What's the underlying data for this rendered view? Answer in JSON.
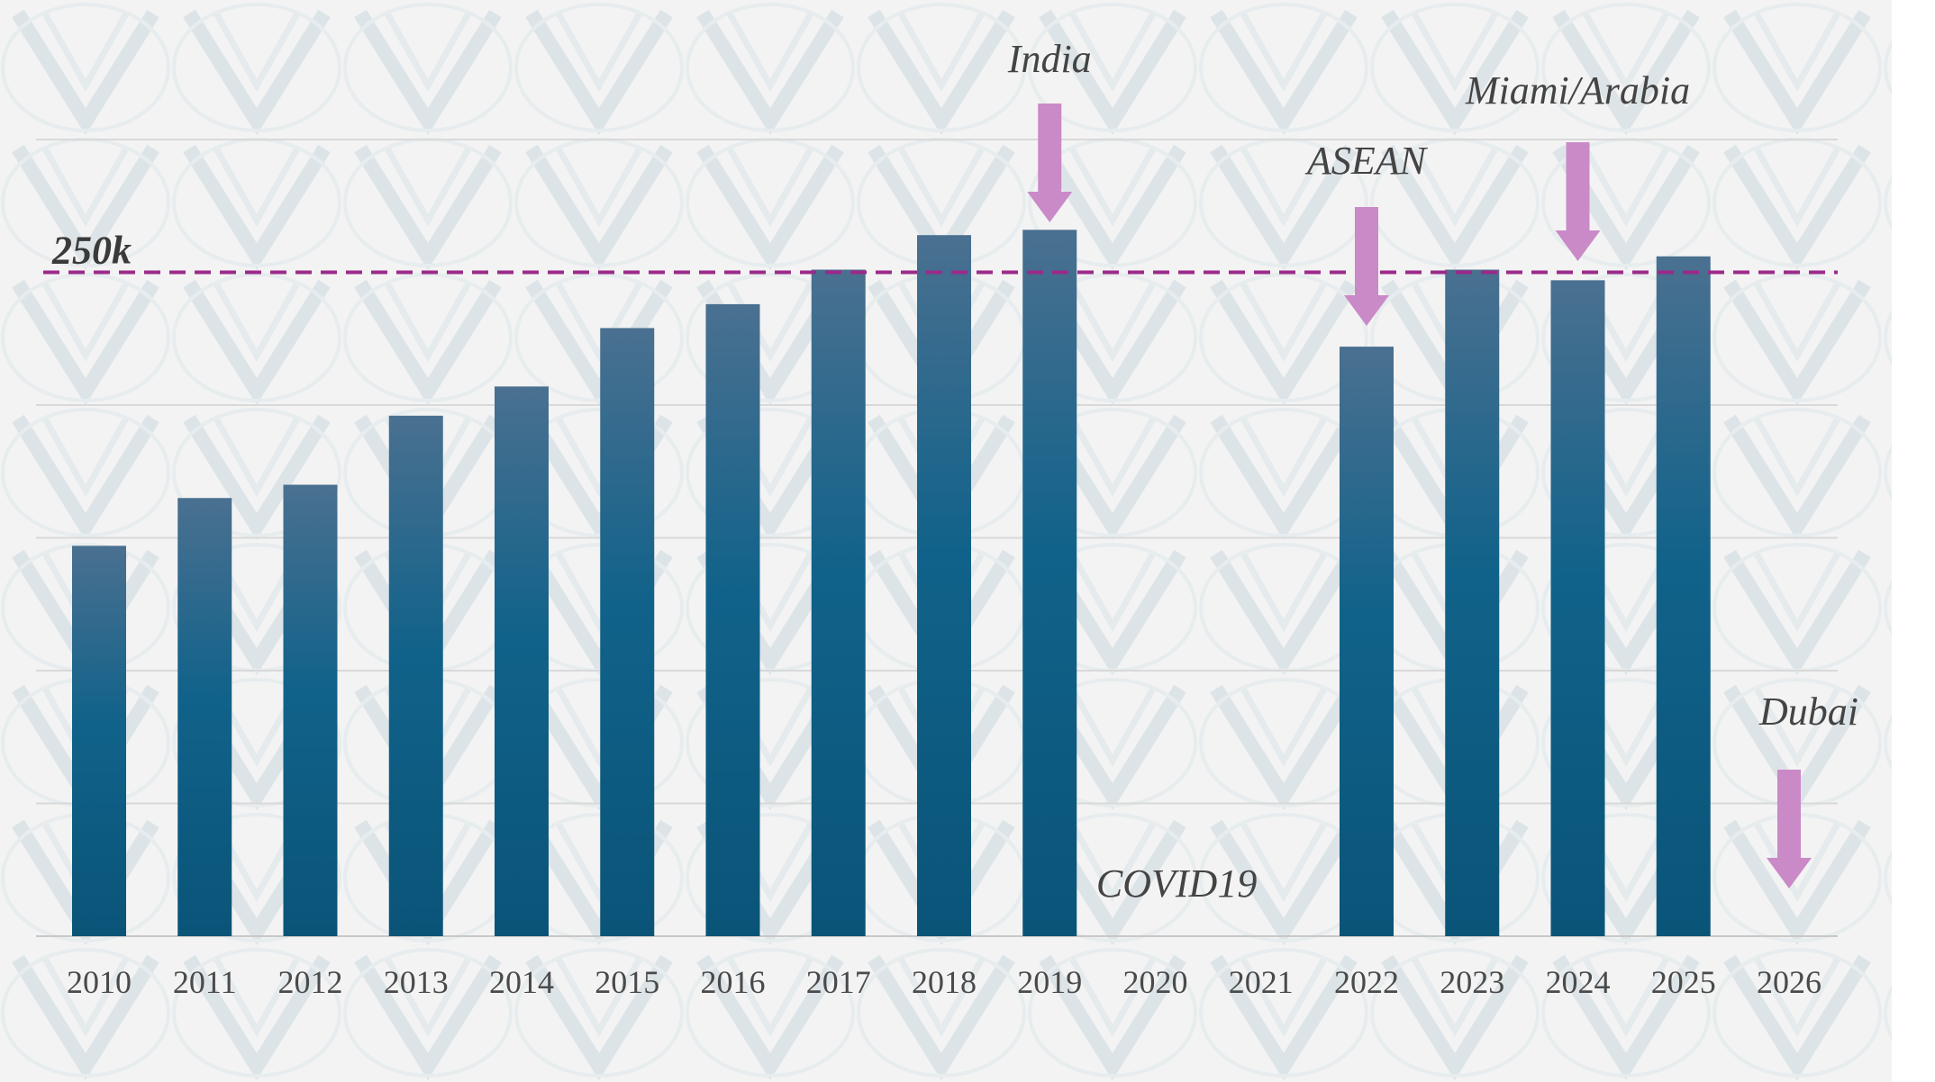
{
  "chart_data": {
    "type": "bar",
    "title": "",
    "xlabel": "",
    "ylabel": "",
    "categories": [
      "2010",
      "2011",
      "2012",
      "2013",
      "2014",
      "2015",
      "2016",
      "2017",
      "2018",
      "2019",
      "2020",
      "2021",
      "2022",
      "2023",
      "2024",
      "2025",
      "2026"
    ],
    "values": [
      147,
      165,
      170,
      196,
      207,
      229,
      238,
      251,
      264,
      266,
      null,
      null,
      222,
      251,
      247,
      256,
      null
    ],
    "ylim": [
      0,
      300
    ],
    "grid": true,
    "reference_line": {
      "value": 250,
      "label": "250k"
    },
    "annotations": [
      {
        "category": "2019",
        "text": "India",
        "arrow": true
      },
      {
        "category": "2022",
        "text": "ASEAN",
        "arrow": true
      },
      {
        "category": "2024",
        "text": "Miami/Arabia",
        "arrow": true
      },
      {
        "category": "2026",
        "text": "Dubai",
        "arrow": true
      },
      {
        "category": "2020-2021",
        "text": "COVID19",
        "arrow": false
      }
    ]
  },
  "colors": {
    "bar_top": "#4a7090",
    "bar_bottom": "#0a5478",
    "reference_line": "#9b2a8a",
    "arrow": "#c98ac7",
    "grid": "#d9d9d9",
    "background": "#f3f3f3"
  }
}
